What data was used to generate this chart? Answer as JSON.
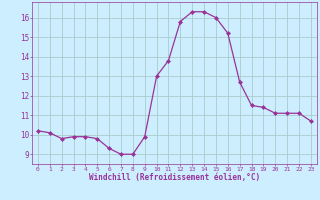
{
  "x": [
    0,
    1,
    2,
    3,
    4,
    5,
    6,
    7,
    8,
    9,
    10,
    11,
    12,
    13,
    14,
    15,
    16,
    17,
    18,
    19,
    20,
    21,
    22,
    23
  ],
  "y": [
    10.2,
    10.1,
    9.8,
    9.9,
    9.9,
    9.8,
    9.3,
    9.0,
    9.0,
    9.9,
    13.0,
    13.8,
    15.8,
    16.3,
    16.3,
    16.0,
    15.2,
    12.7,
    11.5,
    11.4,
    11.1,
    11.1,
    11.1,
    10.7
  ],
  "line_color": "#993399",
  "marker": "D",
  "marker_size": 2,
  "bg_color": "#cceeff",
  "grid_color": "#aacccc",
  "xlabel": "Windchill (Refroidissement éolien,°C)",
  "xlabel_color": "#993399",
  "tick_color": "#993399",
  "xlim": [
    -0.5,
    23.5
  ],
  "ylim": [
    8.5,
    16.8
  ],
  "yticks": [
    9,
    10,
    11,
    12,
    13,
    14,
    15,
    16
  ],
  "xticks": [
    0,
    1,
    2,
    3,
    4,
    5,
    6,
    7,
    8,
    9,
    10,
    11,
    12,
    13,
    14,
    15,
    16,
    17,
    18,
    19,
    20,
    21,
    22,
    23
  ]
}
